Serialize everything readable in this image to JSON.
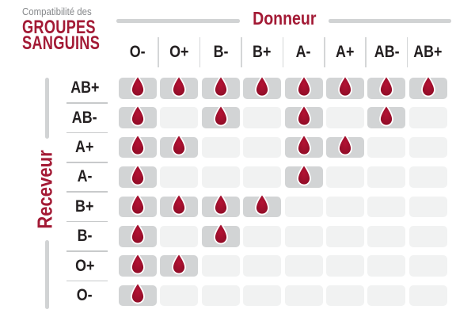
{
  "title": {
    "eyebrow": "Compatibilité des",
    "line1": "GROUPES",
    "line2": "SANGUINS"
  },
  "axes": {
    "donor_label": "Donneur",
    "receiver_label": "Receveur"
  },
  "icon": "blood-drop-icon",
  "colors": {
    "accent_red": "#a31a35",
    "drop_red_center": "#b31233",
    "drop_red_edge": "#8d0c26",
    "drop_stroke": "#ffffff",
    "cell_filled": "#d2d4d5",
    "cell_empty": "#f1f2f2",
    "line_gray": "#d1d3d4",
    "separator": "#d4d6d7",
    "row_separator": "#c8cacb",
    "header_text": "#242021",
    "eyebrow_text": "#85878a"
  },
  "chart_data": {
    "type": "table",
    "title": "Compatibilité des GROUPES SANGUINS",
    "columns_axis_label": "Donneur",
    "rows_axis_label": "Receveur",
    "columns": [
      "O-",
      "O+",
      "B-",
      "B+",
      "A-",
      "A+",
      "AB-",
      "AB+"
    ],
    "rows": [
      "AB+",
      "AB-",
      "A+",
      "A-",
      "B+",
      "B-",
      "O+",
      "O-"
    ],
    "marker": "blood-drop = compatible",
    "matrix": [
      [
        1,
        1,
        1,
        1,
        1,
        1,
        1,
        1
      ],
      [
        1,
        0,
        1,
        0,
        1,
        0,
        1,
        0
      ],
      [
        1,
        1,
        0,
        0,
        1,
        1,
        0,
        0
      ],
      [
        1,
        0,
        0,
        0,
        1,
        0,
        0,
        0
      ],
      [
        1,
        1,
        1,
        1,
        0,
        0,
        0,
        0
      ],
      [
        1,
        0,
        1,
        0,
        0,
        0,
        0,
        0
      ],
      [
        1,
        1,
        0,
        0,
        0,
        0,
        0,
        0
      ],
      [
        1,
        0,
        0,
        0,
        0,
        0,
        0,
        0
      ]
    ]
  }
}
